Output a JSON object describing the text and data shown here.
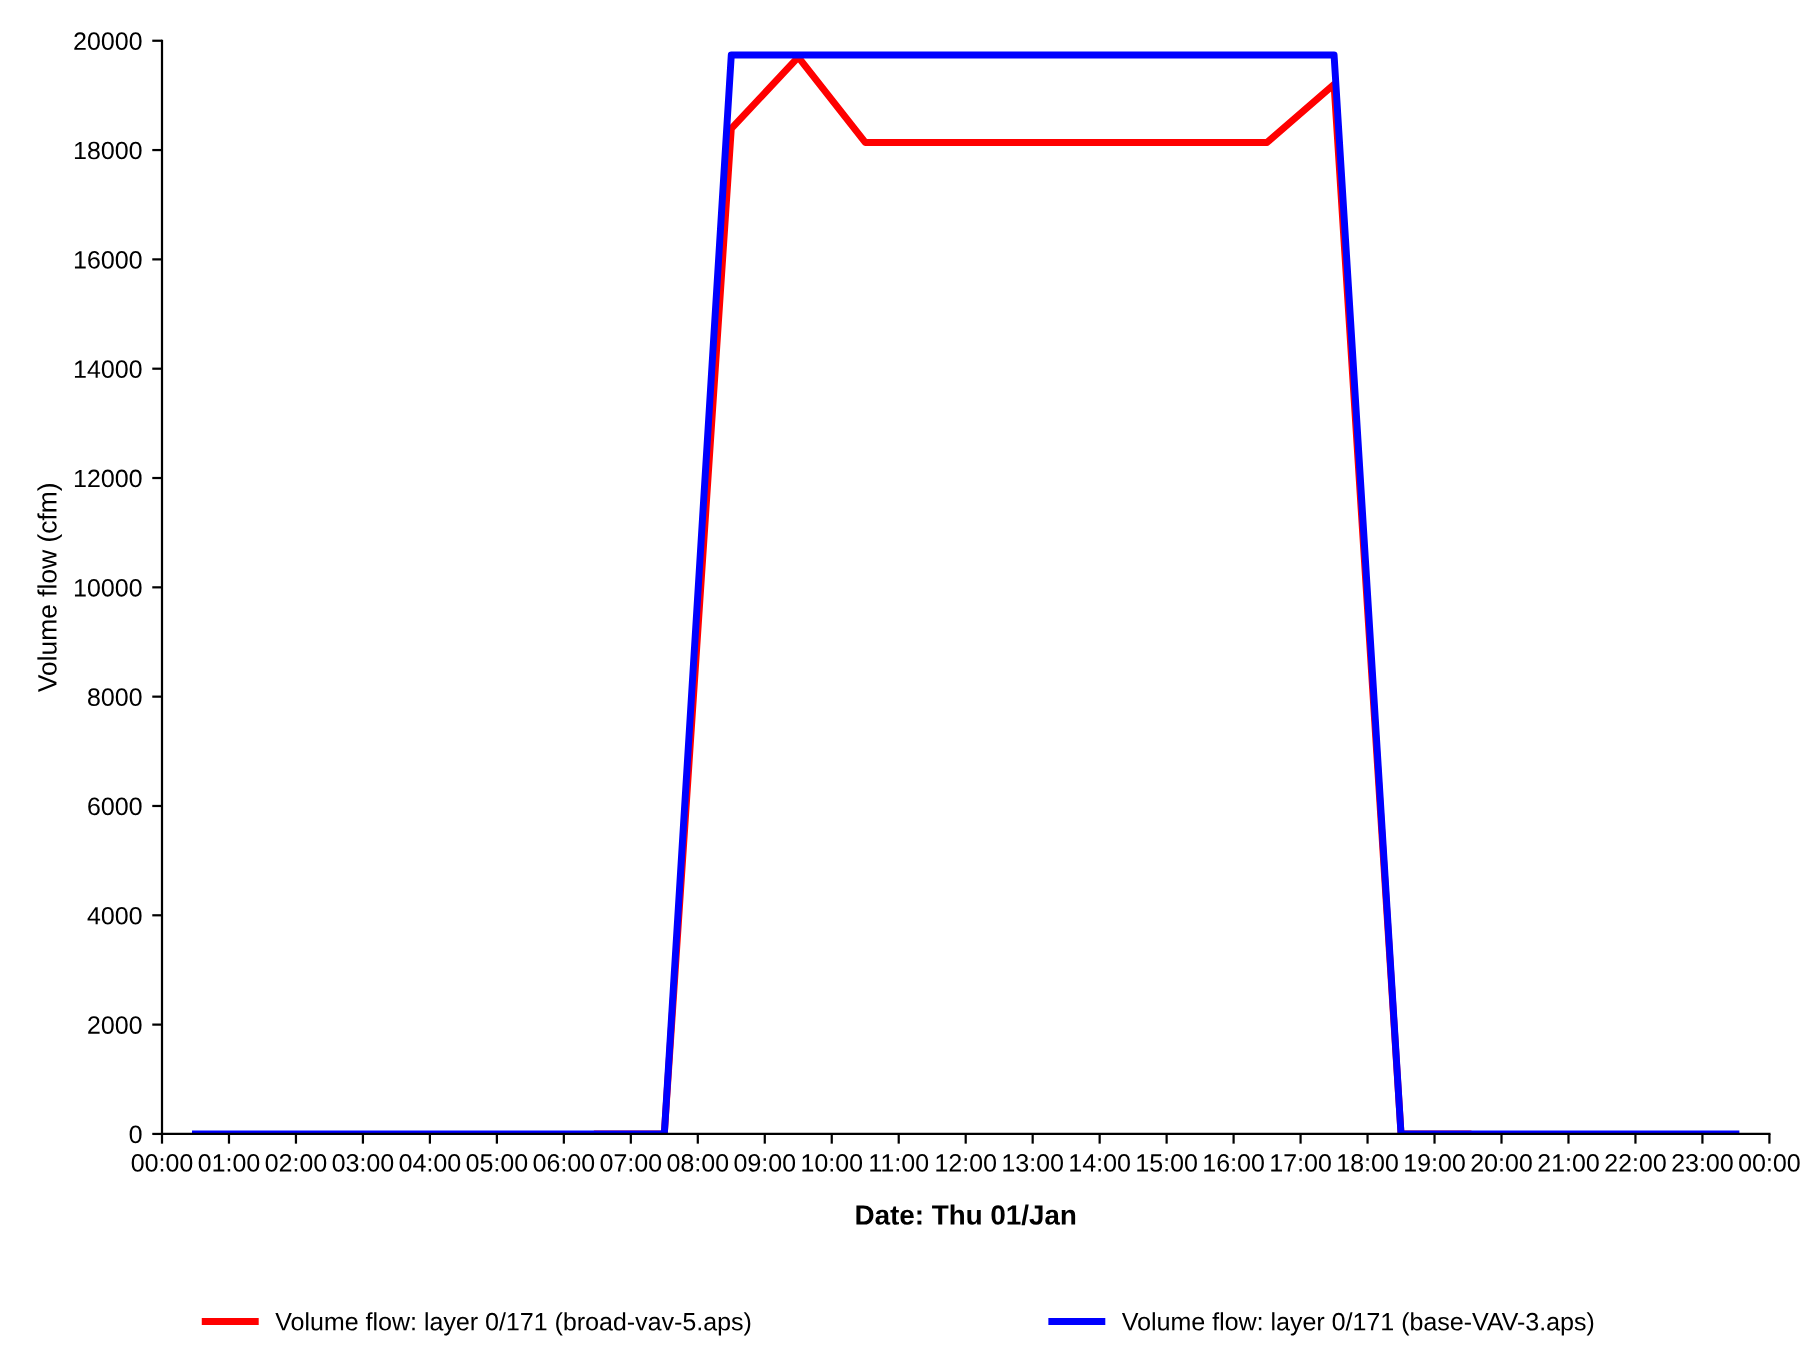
{
  "chart_data": {
    "type": "line",
    "xlabel": "Date: Thu 01/Jan",
    "ylabel": "Volume flow (cfm)",
    "x": [
      0.5,
      1.5,
      2.5,
      3.5,
      4.5,
      5.5,
      6.5,
      7.5,
      8.5,
      9.5,
      10.5,
      11.5,
      12.5,
      13.5,
      14.5,
      15.5,
      16.5,
      17.5,
      18.5,
      19.5,
      20.5,
      21.5,
      22.5,
      23.5
    ],
    "series": [
      {
        "name": "Volume flow: layer 0/171 (broad-vav-5.aps)",
        "color": "#ff0000",
        "values": [
          null,
          null,
          null,
          null,
          null,
          null,
          0,
          0,
          18390,
          19700,
          18140,
          18140,
          18140,
          18140,
          18140,
          18140,
          18140,
          19200,
          0,
          0,
          null,
          null,
          null,
          null
        ]
      },
      {
        "name": "Volume flow: layer 0/171 (base-VAV-3.aps)",
        "color": "#0000ff",
        "values": [
          0,
          0,
          0,
          0,
          0,
          0,
          0,
          0,
          19740,
          19740,
          19740,
          19740,
          19740,
          19740,
          19740,
          19740,
          19740,
          19740,
          0,
          0,
          0,
          0,
          0,
          0
        ]
      }
    ],
    "xlim": [
      0,
      24
    ],
    "ylim": [
      0,
      20000
    ],
    "xticks": [
      {
        "value": 0,
        "label": "00:00"
      },
      {
        "value": 1,
        "label": "01:00"
      },
      {
        "value": 2,
        "label": "02:00"
      },
      {
        "value": 3,
        "label": "03:00"
      },
      {
        "value": 4,
        "label": "04:00"
      },
      {
        "value": 5,
        "label": "05:00"
      },
      {
        "value": 6,
        "label": "06:00"
      },
      {
        "value": 7,
        "label": "07:00"
      },
      {
        "value": 8,
        "label": "08:00"
      },
      {
        "value": 9,
        "label": "09:00"
      },
      {
        "value": 10,
        "label": "10:00"
      },
      {
        "value": 11,
        "label": "11:00"
      },
      {
        "value": 12,
        "label": "12:00"
      },
      {
        "value": 13,
        "label": "13:00"
      },
      {
        "value": 14,
        "label": "14:00"
      },
      {
        "value": 15,
        "label": "15:00"
      },
      {
        "value": 16,
        "label": "16:00"
      },
      {
        "value": 17,
        "label": "17:00"
      },
      {
        "value": 18,
        "label": "18:00"
      },
      {
        "value": 19,
        "label": "19:00"
      },
      {
        "value": 20,
        "label": "20:00"
      },
      {
        "value": 21,
        "label": "21:00"
      },
      {
        "value": 22,
        "label": "22:00"
      },
      {
        "value": 23,
        "label": "23:00"
      },
      {
        "value": 24,
        "label": "00:00"
      }
    ],
    "yticks": [
      0,
      2000,
      4000,
      6000,
      8000,
      10000,
      12000,
      14000,
      16000,
      18000,
      20000
    ],
    "grid": false,
    "legend": "bottom",
    "marker": "none",
    "line_style": "solid"
  }
}
